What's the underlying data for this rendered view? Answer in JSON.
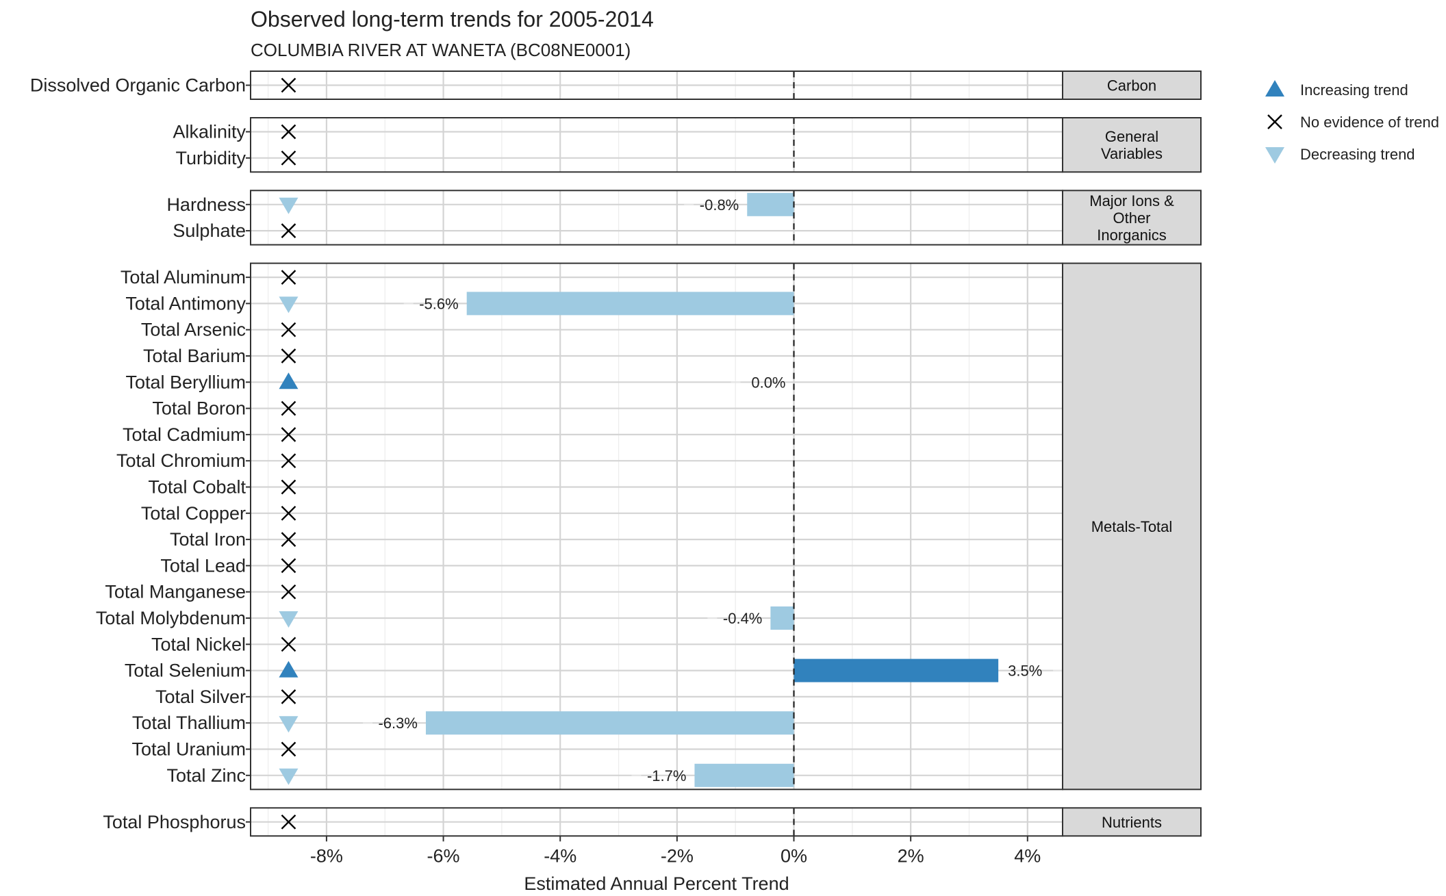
{
  "chart_data": {
    "type": "bar",
    "orientation": "horizontal",
    "title": "Observed long-term trends for 2005-2014",
    "subtitle": "COLUMBIA RIVER AT WANETA (BC08NE0001)",
    "xlabel": "Estimated Annual Percent Trend",
    "ylabel": "",
    "xlim": [
      -9.3,
      4.6
    ],
    "x_ticks": [
      -8,
      -6,
      -4,
      -2,
      0,
      2,
      4
    ],
    "x_tick_labels": [
      "-8%",
      "-6%",
      "-4%",
      "-2%",
      "0%",
      "2%",
      "4%"
    ],
    "grid": true,
    "reference_line": 0,
    "legend_position": "top-right",
    "colors": {
      "increasing": "#3182bd",
      "decreasing": "#9ecae1",
      "no_trend": "#000000"
    },
    "legend": [
      {
        "key": "increasing",
        "label": "Increasing trend"
      },
      {
        "key": "none",
        "label": "No evidence of trend"
      },
      {
        "key": "decreasing",
        "label": "Decreasing trend"
      }
    ],
    "panels": [
      {
        "name": "Carbon",
        "items": [
          {
            "label": "Dissolved Organic Carbon",
            "trend": "none"
          }
        ]
      },
      {
        "name": "General Variables",
        "items": [
          {
            "label": "Alkalinity",
            "trend": "none"
          },
          {
            "label": "Turbidity",
            "trend": "none"
          }
        ]
      },
      {
        "name": "Major Ions & Other Inorganics",
        "items": [
          {
            "label": "Hardness",
            "trend": "decreasing",
            "value": -0.8,
            "value_label": "-0.8%"
          },
          {
            "label": "Sulphate",
            "trend": "none"
          }
        ]
      },
      {
        "name": "Metals-Total",
        "items": [
          {
            "label": "Total Aluminum",
            "trend": "none"
          },
          {
            "label": "Total Antimony",
            "trend": "decreasing",
            "value": -5.6,
            "value_label": "-5.6%"
          },
          {
            "label": "Total Arsenic",
            "trend": "none"
          },
          {
            "label": "Total Barium",
            "trend": "none"
          },
          {
            "label": "Total Beryllium",
            "trend": "increasing",
            "value": 0.0,
            "value_label": "0.0%"
          },
          {
            "label": "Total Boron",
            "trend": "none"
          },
          {
            "label": "Total Cadmium",
            "trend": "none"
          },
          {
            "label": "Total Chromium",
            "trend": "none"
          },
          {
            "label": "Total Cobalt",
            "trend": "none"
          },
          {
            "label": "Total Copper",
            "trend": "none"
          },
          {
            "label": "Total Iron",
            "trend": "none"
          },
          {
            "label": "Total Lead",
            "trend": "none"
          },
          {
            "label": "Total Manganese",
            "trend": "none"
          },
          {
            "label": "Total Molybdenum",
            "trend": "decreasing",
            "value": -0.4,
            "value_label": "-0.4%"
          },
          {
            "label": "Total Nickel",
            "trend": "none"
          },
          {
            "label": "Total Selenium",
            "trend": "increasing",
            "value": 3.5,
            "value_label": "3.5%"
          },
          {
            "label": "Total Silver",
            "trend": "none"
          },
          {
            "label": "Total Thallium",
            "trend": "decreasing",
            "value": -6.3,
            "value_label": "-6.3%"
          },
          {
            "label": "Total Uranium",
            "trend": "none"
          },
          {
            "label": "Total Zinc",
            "trend": "decreasing",
            "value": -1.7,
            "value_label": "-1.7%"
          }
        ]
      },
      {
        "name": "Nutrients",
        "items": [
          {
            "label": "Total Phosphorus",
            "trend": "none"
          }
        ]
      }
    ]
  }
}
